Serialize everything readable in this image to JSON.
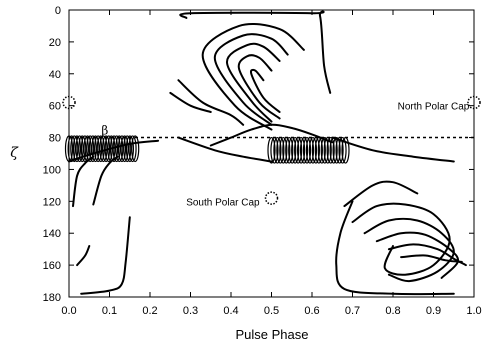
{
  "chart_data": {
    "type": "line",
    "title": "",
    "xlabel": "Pulse Phase",
    "ylabel": "ζ",
    "xlim": [
      0.0,
      1.0
    ],
    "ylim": [
      180,
      0
    ],
    "x_ticks": [
      "0.0",
      "0.1",
      "0.2",
      "0.3",
      "0.4",
      "0.5",
      "0.6",
      "0.7",
      "0.8",
      "0.9",
      "1.0"
    ],
    "y_ticks": [
      "0",
      "20",
      "40",
      "60",
      "80",
      "100",
      "120",
      "140",
      "160",
      "180"
    ],
    "grid": false,
    "reference_line": {
      "label": "β",
      "y": 80,
      "style": "dashed"
    },
    "annotations": [
      {
        "text": "North Polar Cap",
        "x": 0.9,
        "y": 60
      },
      {
        "text": "South Polar Cap",
        "x": 0.38,
        "y": 120
      }
    ],
    "polar_cap_markers": [
      {
        "x": 0.0,
        "y": 58
      },
      {
        "x": 1.0,
        "y": 58
      },
      {
        "x": 0.5,
        "y": 118
      }
    ],
    "series": [
      {
        "points": [
          [
            0.29,
            5
          ],
          [
            0.3,
            2
          ],
          [
            0.6,
            2
          ],
          [
            0.62,
            4
          ],
          [
            0.63,
            35
          ],
          [
            0.645,
            52
          ]
        ]
      },
      {
        "points": [
          [
            0.58,
            25
          ],
          [
            0.52,
            12
          ],
          [
            0.42,
            10
          ],
          [
            0.33,
            28
          ],
          [
            0.41,
            60
          ],
          [
            0.5,
            75
          ]
        ]
      },
      {
        "points": [
          [
            0.54,
            28
          ],
          [
            0.5,
            18
          ],
          [
            0.43,
            16
          ],
          [
            0.36,
            30
          ],
          [
            0.43,
            58
          ],
          [
            0.5,
            72
          ]
        ]
      },
      {
        "points": [
          [
            0.52,
            32
          ],
          [
            0.48,
            23
          ],
          [
            0.44,
            22
          ],
          [
            0.39,
            33
          ],
          [
            0.45,
            57
          ],
          [
            0.5,
            70
          ]
        ]
      },
      {
        "points": [
          [
            0.5,
            38
          ],
          [
            0.47,
            30
          ],
          [
            0.44,
            29
          ],
          [
            0.42,
            37
          ],
          [
            0.47,
            58
          ],
          [
            0.52,
            68
          ]
        ]
      },
      {
        "points": [
          [
            0.48,
            44
          ],
          [
            0.46,
            38
          ],
          [
            0.45,
            40
          ],
          [
            0.48,
            55
          ],
          [
            0.52,
            64
          ]
        ]
      },
      {
        "points": [
          [
            0.27,
            44
          ],
          [
            0.33,
            58
          ],
          [
            0.4,
            66
          ],
          [
            0.43,
            72
          ]
        ]
      },
      {
        "points": [
          [
            0.25,
            52
          ],
          [
            0.3,
            60
          ],
          [
            0.35,
            64
          ]
        ]
      },
      {
        "points": [
          [
            0.27,
            80
          ],
          [
            0.36,
            88
          ],
          [
            0.43,
            92
          ],
          [
            0.5,
            95
          ]
        ]
      },
      {
        "points": [
          [
            0.65,
            80
          ],
          [
            0.75,
            88
          ],
          [
            0.85,
            92
          ],
          [
            0.95,
            95
          ]
        ]
      },
      {
        "points": [
          [
            0.0,
            95
          ],
          [
            0.06,
            90
          ],
          [
            0.15,
            84
          ],
          [
            0.22,
            82
          ]
        ]
      },
      {
        "points": [
          [
            0.35,
            85
          ],
          [
            0.4,
            80
          ],
          [
            0.45,
            75
          ],
          [
            0.5,
            72
          ],
          [
            0.55,
            74
          ],
          [
            0.6,
            78
          ],
          [
            0.65,
            83
          ]
        ]
      },
      {
        "points": [
          [
            0.01,
            123
          ],
          [
            0.02,
            104
          ],
          [
            0.04,
            96
          ],
          [
            0.06,
            92
          ]
        ]
      },
      {
        "points": [
          [
            0.06,
            122
          ],
          [
            0.08,
            104
          ],
          [
            0.1,
            96
          ],
          [
            0.12,
            92
          ]
        ]
      },
      {
        "points": [
          [
            0.02,
            160
          ],
          [
            0.04,
            154
          ],
          [
            0.05,
            148
          ]
        ]
      },
      {
        "points": [
          [
            0.03,
            178
          ],
          [
            0.1,
            176
          ],
          [
            0.13,
            172
          ],
          [
            0.14,
            158
          ],
          [
            0.15,
            130
          ]
        ]
      },
      {
        "points": [
          [
            0.68,
            123
          ],
          [
            0.75,
            110
          ],
          [
            0.8,
            108
          ],
          [
            0.86,
            115
          ]
        ]
      },
      {
        "points": [
          [
            0.7,
            133
          ],
          [
            0.76,
            123
          ],
          [
            0.83,
            122
          ],
          [
            0.9,
            128
          ],
          [
            0.94,
            144
          ],
          [
            0.9,
            160
          ],
          [
            0.83,
            166
          ],
          [
            0.78,
            162
          ],
          [
            0.8,
            148
          ]
        ]
      },
      {
        "points": [
          [
            0.73,
            140
          ],
          [
            0.79,
            132
          ],
          [
            0.86,
            132
          ],
          [
            0.92,
            140
          ],
          [
            0.95,
            152
          ],
          [
            0.91,
            164
          ],
          [
            0.84,
            170
          ],
          [
            0.79,
            166
          ]
        ]
      },
      {
        "points": [
          [
            0.76,
            145
          ],
          [
            0.82,
            140
          ],
          [
            0.88,
            141
          ],
          [
            0.94,
            150
          ],
          [
            0.96,
            158
          ],
          [
            0.92,
            168
          ]
        ]
      },
      {
        "points": [
          [
            0.79,
            150
          ],
          [
            0.85,
            147
          ],
          [
            0.91,
            150
          ],
          [
            0.95,
            156
          ],
          [
            0.98,
            160
          ]
        ]
      },
      {
        "points": [
          [
            0.82,
            155
          ],
          [
            0.88,
            154
          ],
          [
            0.93,
            157
          ],
          [
            0.97,
            158
          ]
        ]
      },
      {
        "points": [
          [
            0.7,
            120
          ],
          [
            0.67,
            140
          ],
          [
            0.66,
            160
          ],
          [
            0.68,
            175
          ],
          [
            0.8,
            178
          ],
          [
            0.95,
            178
          ]
        ]
      }
    ]
  }
}
